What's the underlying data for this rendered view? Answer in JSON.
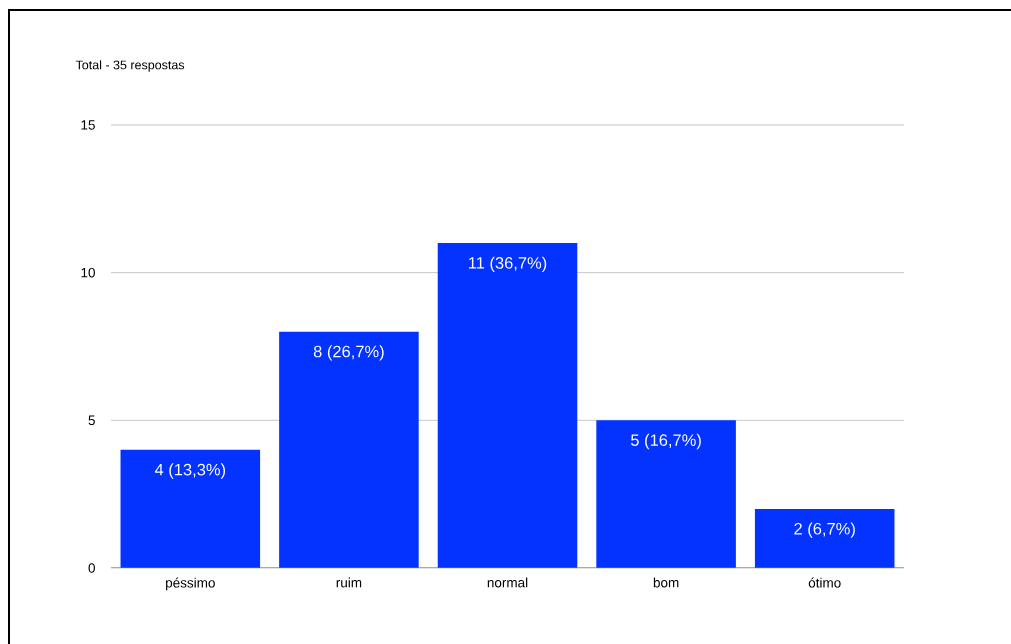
{
  "chart_data": {
    "type": "bar",
    "title": "Total - 35 respostas",
    "categories": [
      "péssimo",
      "ruim",
      "normal",
      "bom",
      "ótimo"
    ],
    "values": [
      4,
      8,
      11,
      5,
      2
    ],
    "value_labels": [
      "4 (13,3%)",
      "8 (26,7%)",
      "11 (36,7%)",
      "5 (16,7%)",
      "2 (6,7%)"
    ],
    "color": "#0433ff",
    "ylim": [
      0,
      15
    ],
    "yticks": [
      0,
      5,
      10,
      15
    ],
    "grid": "y"
  }
}
